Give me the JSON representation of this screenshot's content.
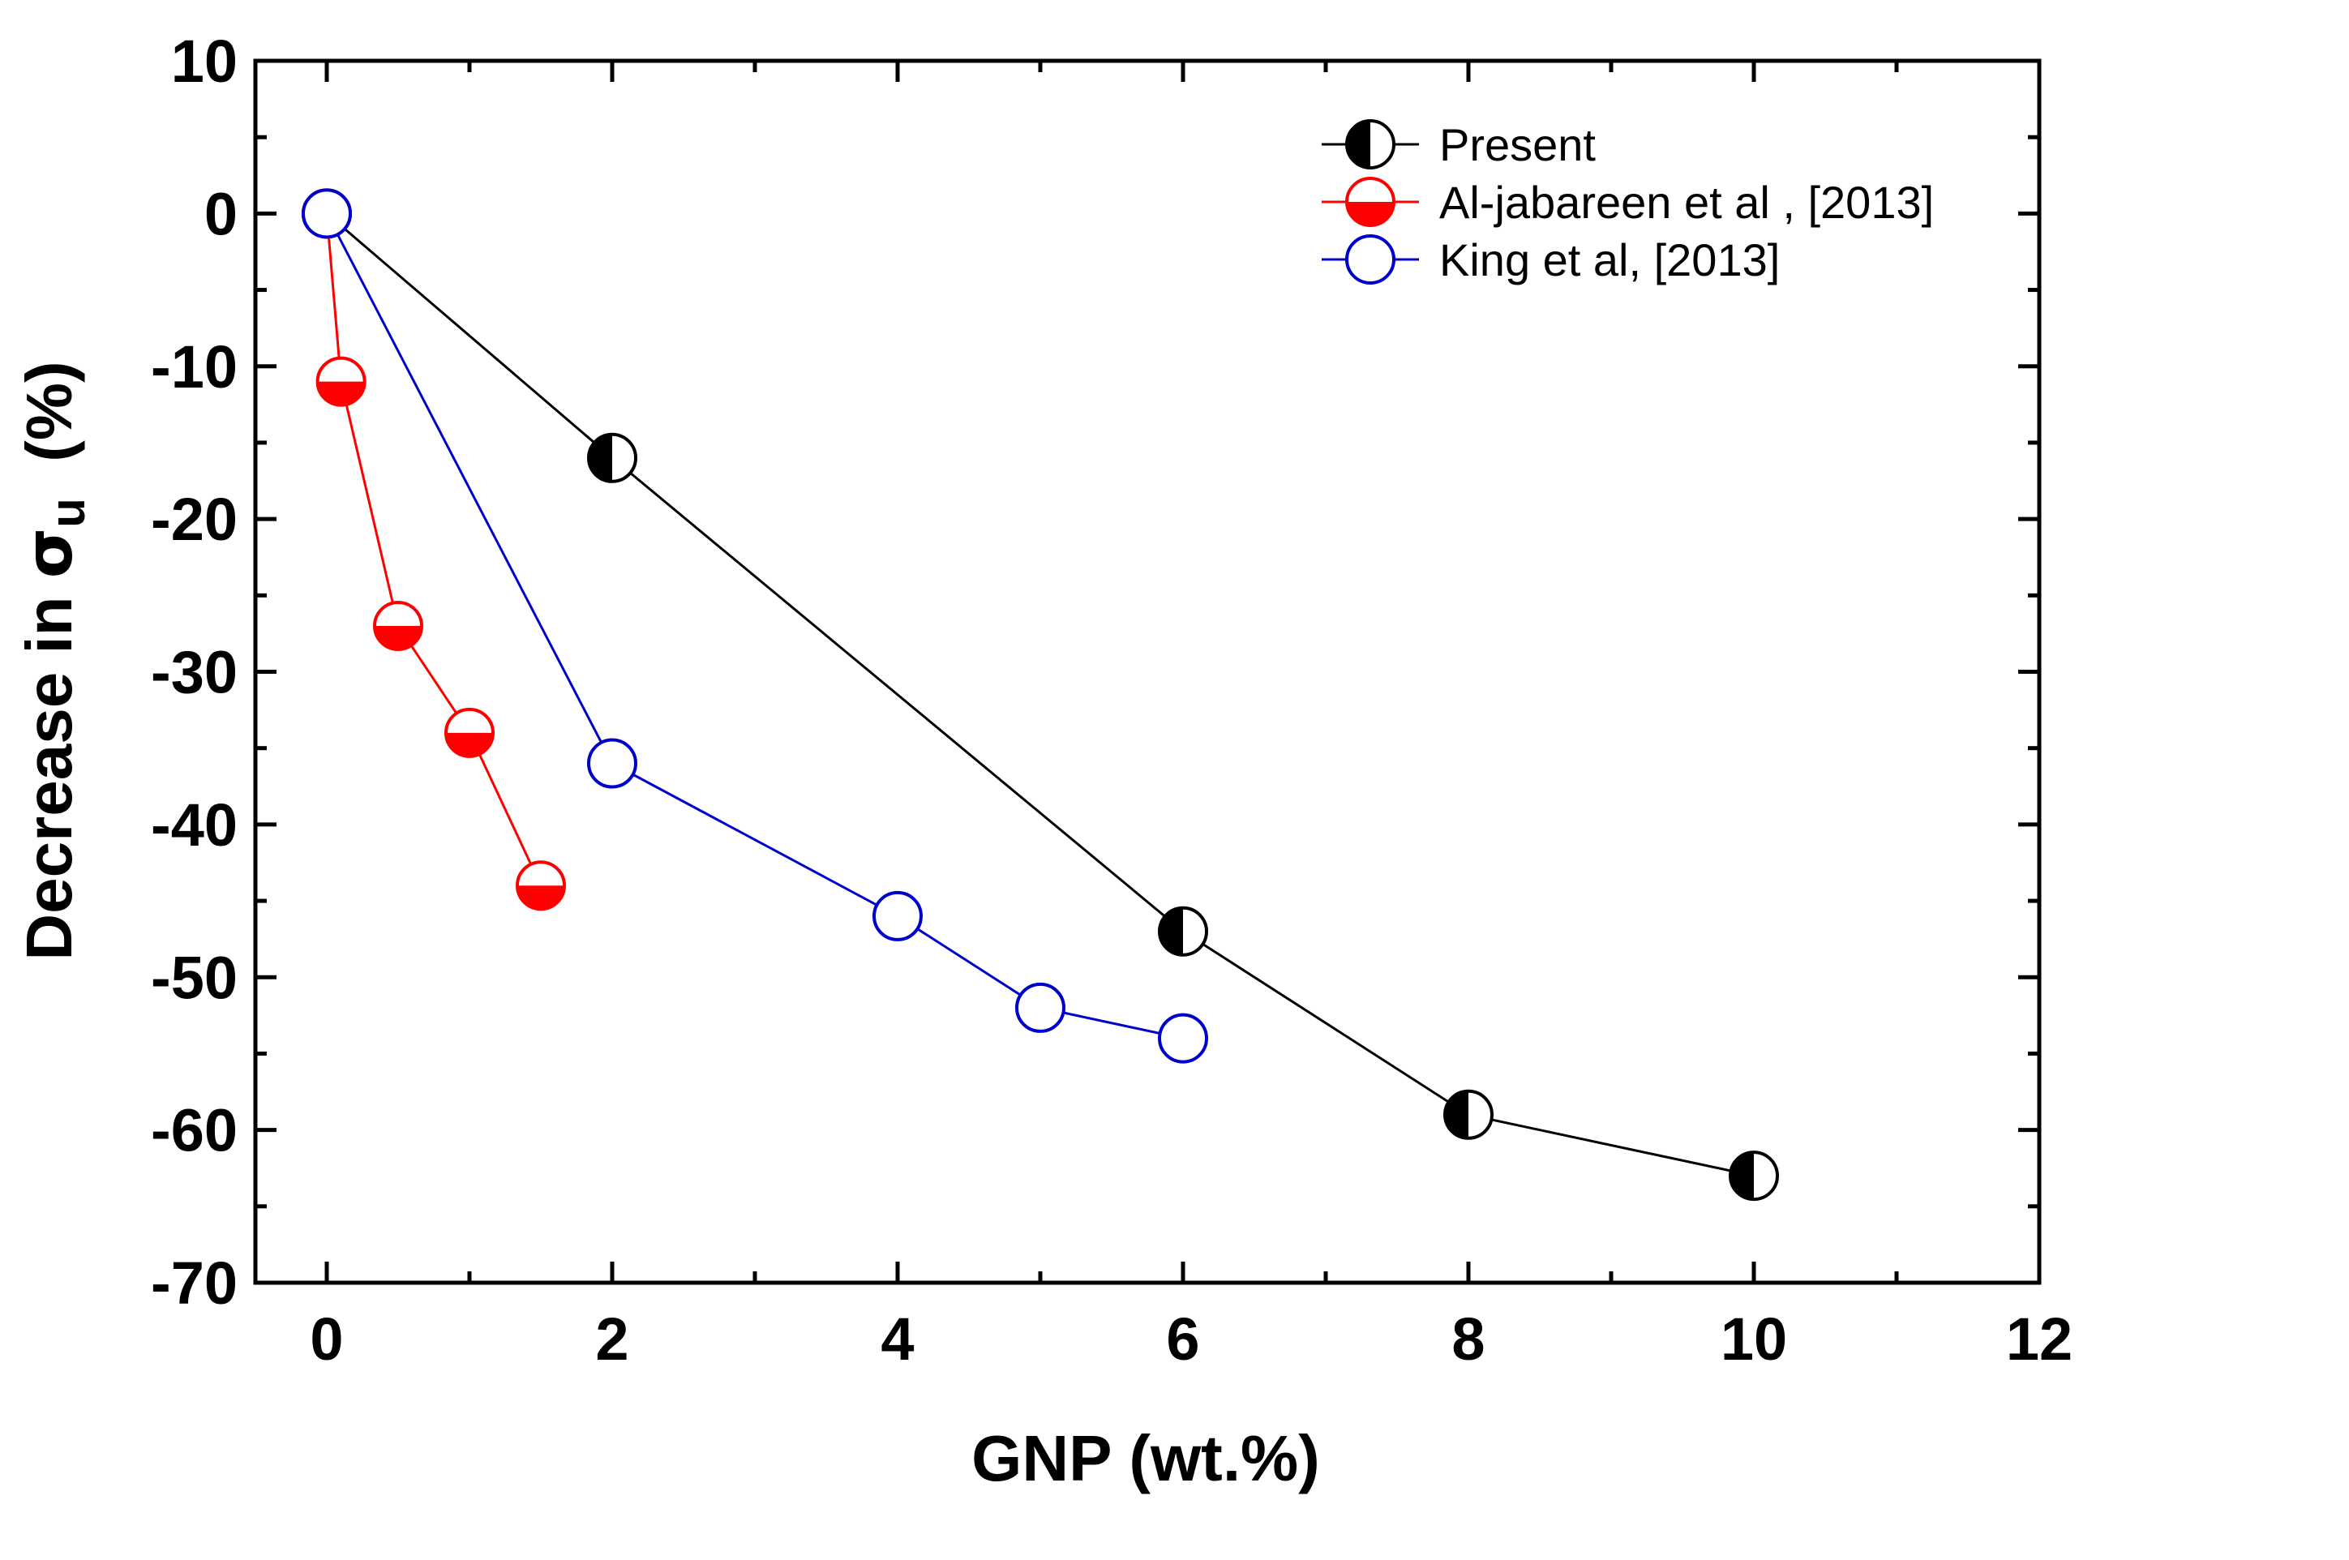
{
  "chart_data": {
    "type": "line",
    "title": "",
    "xlabel": "GNP (wt.%)",
    "ylabel": {
      "prefix": "Decrease in ",
      "symbol": "σ",
      "subscript": "u",
      "suffix": "  (%)"
    },
    "xlim": [
      -0.5,
      12
    ],
    "ylim": [
      -70,
      10
    ],
    "xticks": [
      0,
      2,
      4,
      6,
      8,
      10,
      12
    ],
    "yticks": [
      10,
      0,
      -10,
      -20,
      -30,
      -40,
      -50,
      -60,
      -70
    ],
    "grid": false,
    "legend_position": "top-right",
    "series": [
      {
        "name": "Present",
        "marker": "half-filled-left",
        "color": "#000000",
        "x": [
          0,
          2,
          6,
          8,
          10
        ],
        "y": [
          0,
          -16,
          -47,
          -59,
          -63
        ]
      },
      {
        "name": "Al-jabareen et al , [2013]",
        "marker": "half-filled-bottom",
        "color": "#ff0000",
        "x": [
          0,
          0.1,
          0.5,
          1,
          1.5
        ],
        "y": [
          0,
          -11,
          -27,
          -34,
          -44
        ]
      },
      {
        "name": "King et al, [2013]",
        "marker": "open-circle",
        "color": "#0000cc",
        "x": [
          0,
          2,
          4,
          5,
          6
        ],
        "y": [
          0,
          -36,
          -46,
          -52,
          -54
        ]
      }
    ]
  }
}
